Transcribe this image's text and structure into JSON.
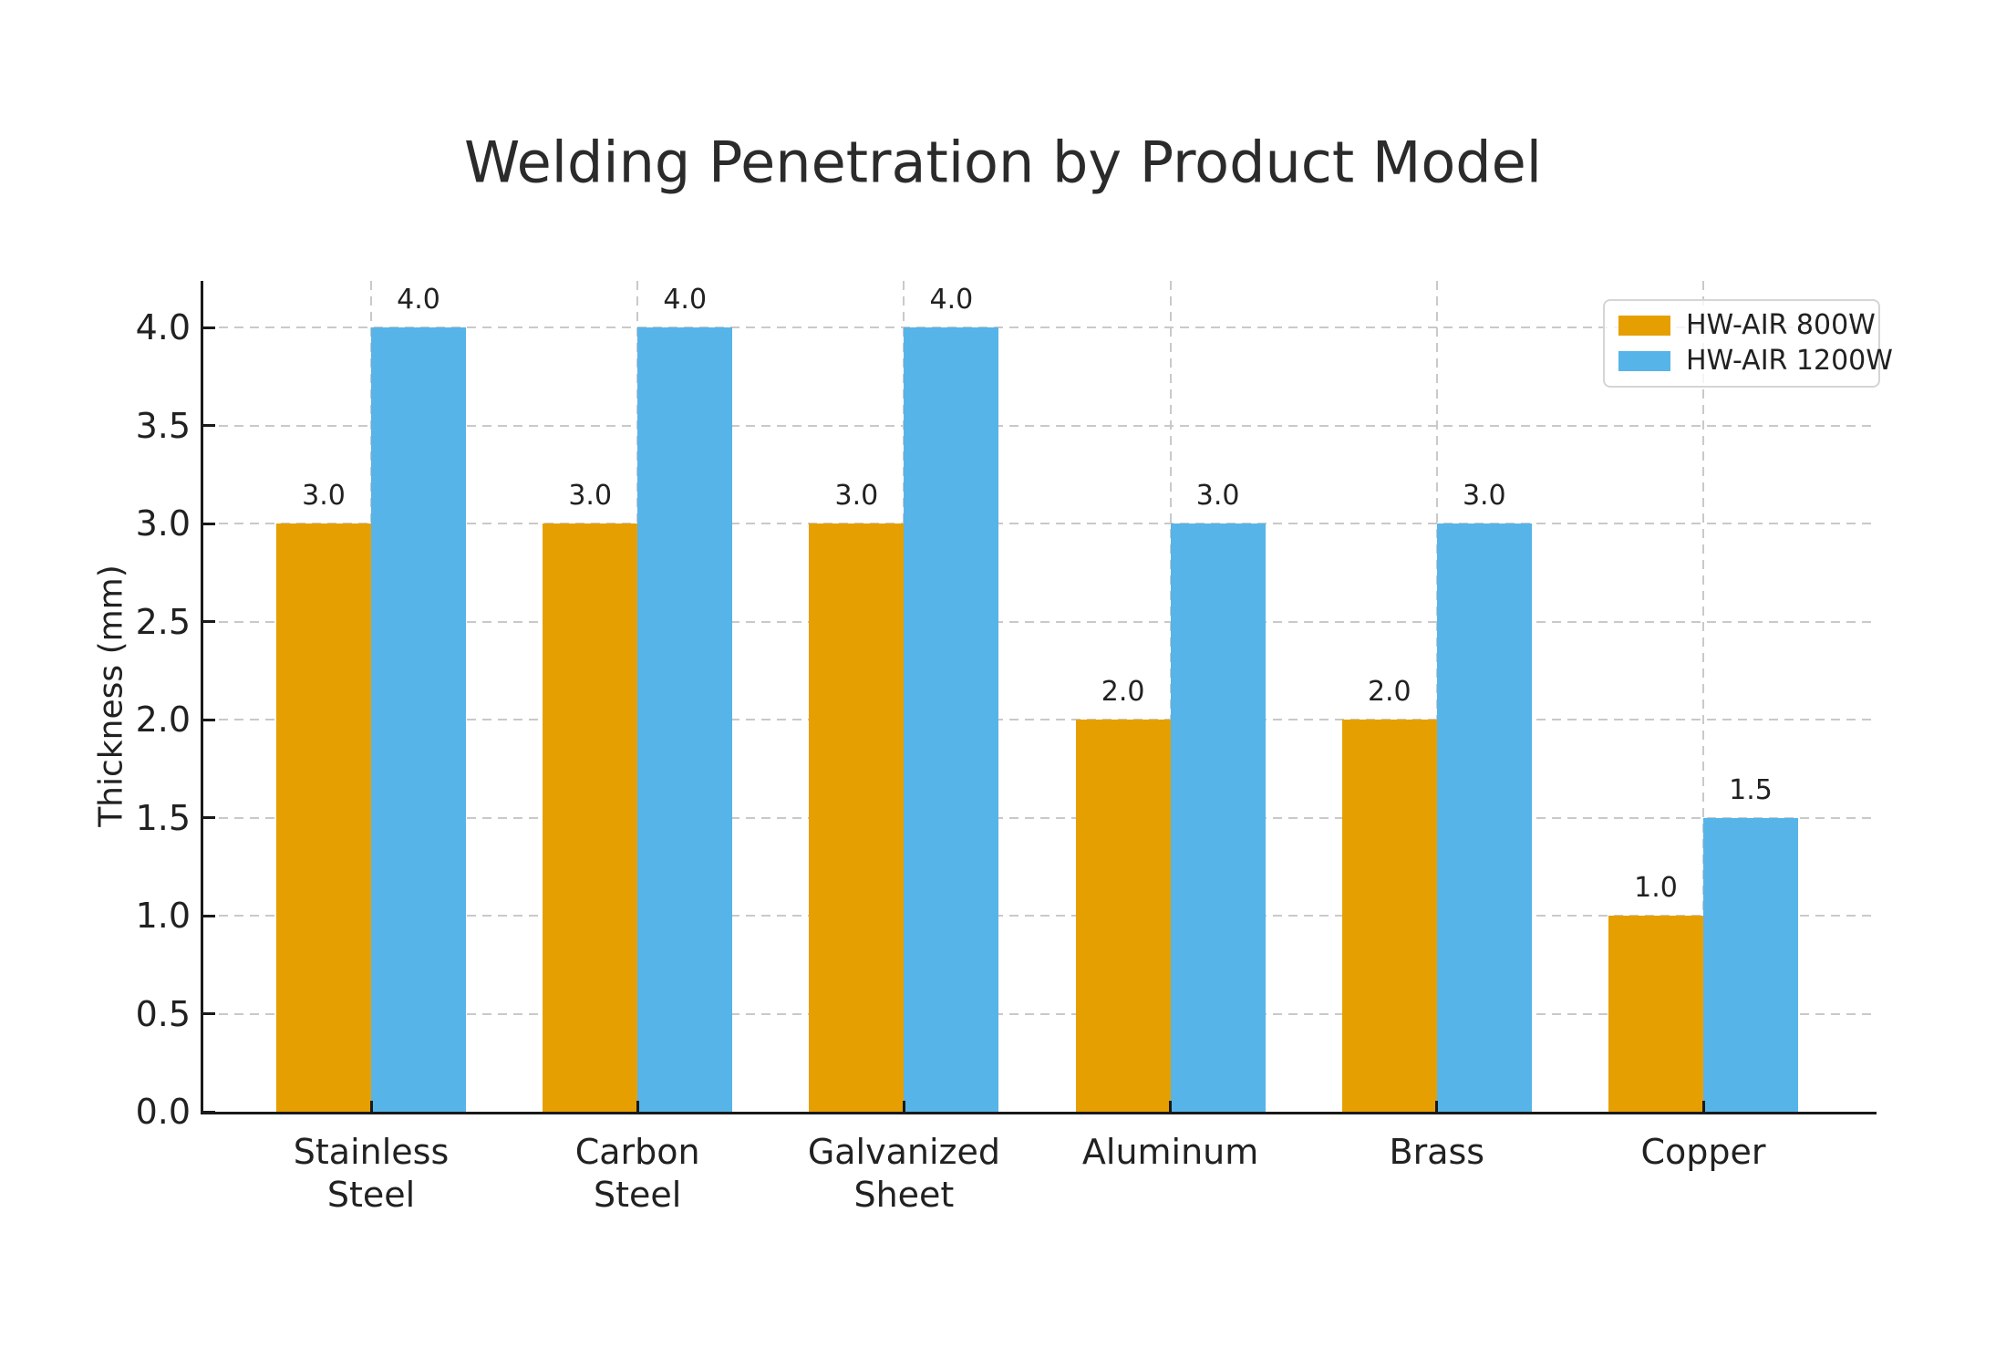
{
  "chart_data": {
    "type": "bar",
    "title": "Welding Penetration by Product Model",
    "ylabel": "Thickness (mm)",
    "xlabel": "",
    "categories": [
      "Stainless Steel",
      "Carbon Steel",
      "Galvanized Sheet",
      "Aluminum",
      "Brass",
      "Copper"
    ],
    "category_label_lines": [
      [
        "Stainless",
        "Steel"
      ],
      [
        "Carbon",
        "Steel"
      ],
      [
        "Galvanized",
        "Sheet"
      ],
      [
        "Aluminum"
      ],
      [
        "Brass"
      ],
      [
        "Copper"
      ]
    ],
    "series": [
      {
        "name": "HW-AIR 800W",
        "color": "#E69F00",
        "values": [
          3.0,
          3.0,
          3.0,
          2.0,
          2.0,
          1.0
        ]
      },
      {
        "name": "HW-AIR 1200W",
        "color": "#56B4E9",
        "values": [
          4.0,
          4.0,
          4.0,
          3.0,
          3.0,
          1.5
        ]
      }
    ],
    "bar_value_labels": [
      [
        "3.0",
        "3.0",
        "3.0",
        "2.0",
        "2.0",
        "1.0"
      ],
      [
        "4.0",
        "4.0",
        "4.0",
        "3.0",
        "3.0",
        "1.5"
      ]
    ],
    "yticks": [
      0.0,
      0.5,
      1.0,
      1.5,
      2.0,
      2.5,
      3.0,
      3.5,
      4.0
    ],
    "ylim": [
      0.0,
      4.24
    ],
    "grid": true,
    "gridline_style": "dashed",
    "legend_position": "upper-right",
    "colors": {
      "grid": "#c9c9c9",
      "spine": "#1a1a1a",
      "text": "#212121",
      "legend_border": "#d5d5d5",
      "background": "#ffffff"
    }
  }
}
